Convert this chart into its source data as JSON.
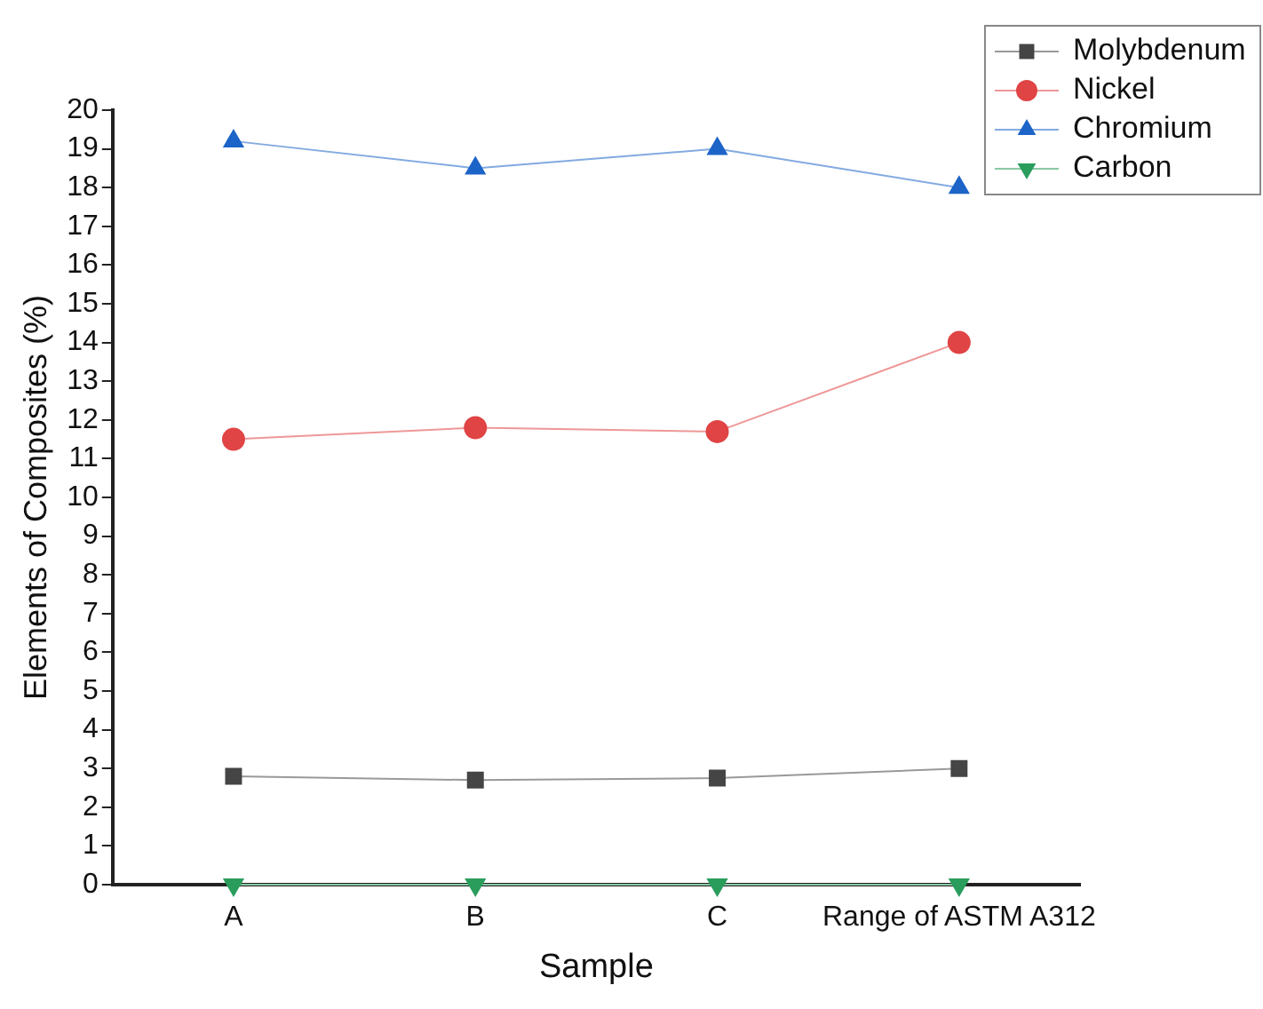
{
  "chart_data": {
    "type": "line",
    "xlabel": "Sample",
    "ylabel": "Elements of Composites (%)",
    "categories": [
      "A",
      "B",
      "C",
      "Range of ASTM A312"
    ],
    "series": [
      {
        "name": "Molybdenum",
        "color": "#454545",
        "marker": "square",
        "values": [
          2.8,
          2.7,
          2.75,
          3.0
        ]
      },
      {
        "name": "Nickel",
        "color": "#e04444",
        "marker": "circle",
        "values": [
          11.5,
          11.8,
          11.7,
          14.0
        ]
      },
      {
        "name": "Chromium",
        "color": "#1d64c8",
        "marker": "triangle",
        "values": [
          19.2,
          18.5,
          19.0,
          18.0
        ]
      },
      {
        "name": "Carbon",
        "color": "#2a9d5c",
        "marker": "triangle-down",
        "values": [
          0,
          0,
          0,
          0
        ]
      }
    ],
    "ylim": [
      0,
      20
    ],
    "yticks": [
      0,
      1,
      2,
      3,
      4,
      5,
      6,
      7,
      8,
      9,
      10,
      11,
      12,
      13,
      14,
      15,
      16,
      17,
      18,
      19,
      20
    ],
    "grid": false,
    "legend": "top right",
    "line_style": "solid"
  }
}
